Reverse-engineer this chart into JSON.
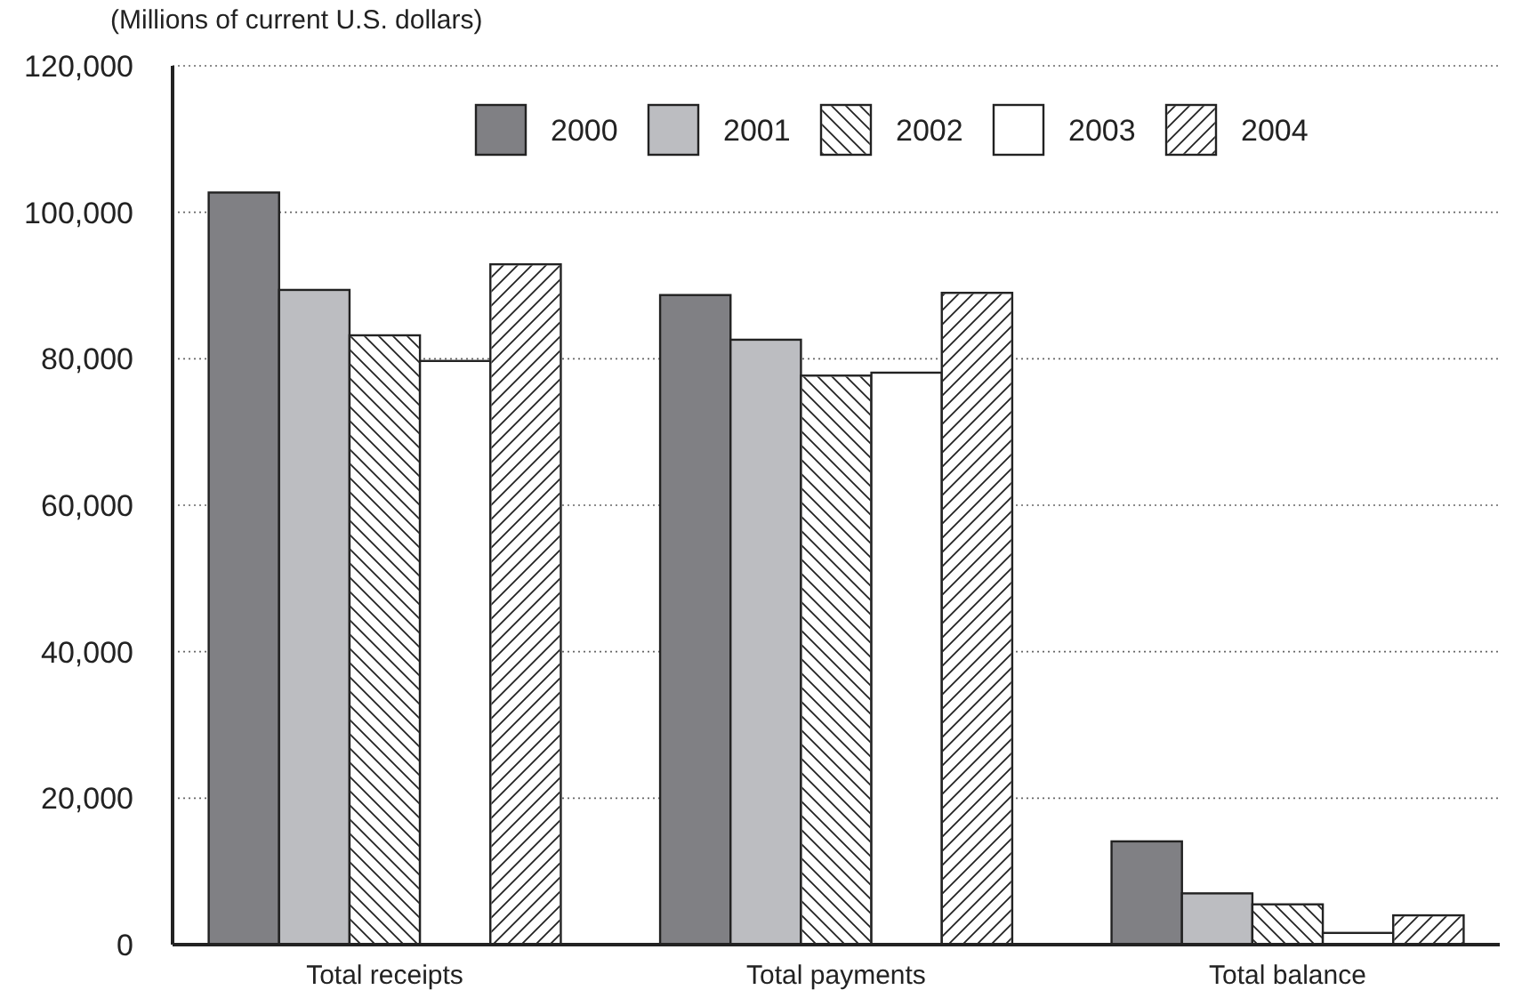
{
  "chart_data": {
    "type": "bar",
    "ylabel": "(Millions of current U.S. dollars)",
    "categories": [
      "Total receipts",
      "Total payments",
      "Total balance"
    ],
    "series": [
      {
        "name": "2000",
        "color": "#808084",
        "values": [
          102700,
          88700,
          14100
        ]
      },
      {
        "name": "2001",
        "color": "#bcbdc1",
        "values": [
          89400,
          82600,
          7000
        ]
      },
      {
        "name": "2002",
        "color": "#ffffff",
        "values": [
          83200,
          77700,
          5500
        ]
      },
      {
        "name": "2003",
        "color": "#ffffff",
        "values": [
          79700,
          78100,
          1600
        ]
      },
      {
        "name": "2004",
        "color": "#ffffff",
        "values": [
          92900,
          89000,
          4000
        ]
      }
    ],
    "ylim": [
      0,
      120000
    ],
    "yticks": [
      0,
      {
        "value": 20000,
        "label": "20,000"
      },
      {
        "value": 40000,
        "label": "40,000"
      },
      {
        "value": 60000,
        "label": "60,000"
      },
      {
        "value": 80000,
        "label": "80,000"
      },
      {
        "value": 100000,
        "label": "100,000"
      },
      {
        "value": 120000,
        "label": "120,000"
      }
    ],
    "grid": "y",
    "legend": "top"
  }
}
